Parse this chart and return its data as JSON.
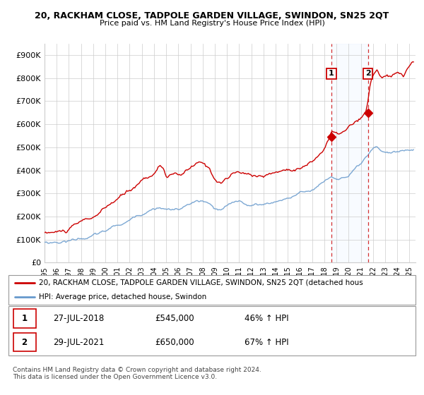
{
  "title": "20, RACKHAM CLOSE, TADPOLE GARDEN VILLAGE, SWINDON, SN25 2QT",
  "subtitle": "Price paid vs. HM Land Registry's House Price Index (HPI)",
  "ylim": [
    0,
    950000
  ],
  "yticks": [
    0,
    100000,
    200000,
    300000,
    400000,
    500000,
    600000,
    700000,
    800000,
    900000
  ],
  "ytick_labels": [
    "£0",
    "£100K",
    "£200K",
    "£300K",
    "£400K",
    "£500K",
    "£600K",
    "£700K",
    "£800K",
    "£900K"
  ],
  "hpi_color": "#6699cc",
  "price_color": "#cc0000",
  "vline_color": "#cc0000",
  "annotation1_label": "1",
  "annotation2_label": "2",
  "sale1_date": "27-JUL-2018",
  "sale1_price": "£545,000",
  "sale1_hpi": "46% ↑ HPI",
  "sale2_date": "29-JUL-2021",
  "sale2_price": "£650,000",
  "sale2_hpi": "67% ↑ HPI",
  "legend_label1": "20, RACKHAM CLOSE, TADPOLE GARDEN VILLAGE, SWINDON, SN25 2QT (detached hous",
  "legend_label2": "HPI: Average price, detached house, Swindon",
  "footer": "Contains HM Land Registry data © Crown copyright and database right 2024.\nThis data is licensed under the Open Government Licence v3.0.",
  "sale1_x": 2018.58,
  "sale1_y": 545000,
  "sale2_x": 2021.58,
  "sale2_y": 650000,
  "vline1_x": 2018.58,
  "vline2_x": 2021.58,
  "xmin": 1995.0,
  "xmax": 2025.5
}
